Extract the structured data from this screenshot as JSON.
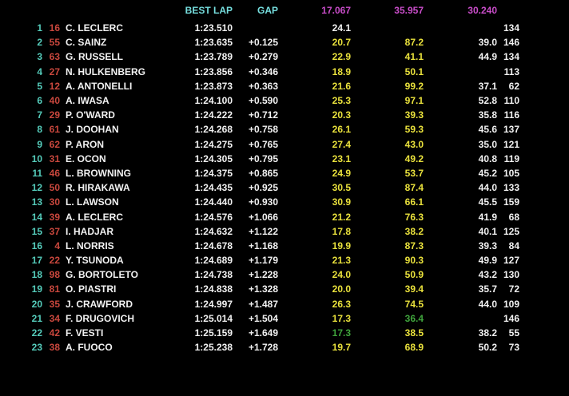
{
  "colors": {
    "background": "#000000",
    "position_teal": "#55ccbb",
    "car_number_red": "#c9473d",
    "text_white": "#f2f2f2",
    "header_cyan": "#76dede",
    "best_sector_magenta": "#c94dc9",
    "sector_yellow": "#e9e13c",
    "sector_green": "#3fa43c"
  },
  "header": {
    "best_lap_label": "BEST LAP",
    "gap_label": "GAP",
    "best_sectors": [
      "17.067",
      "35.957",
      "30.240"
    ]
  },
  "rows": [
    {
      "pos": "1",
      "num": "16",
      "driver": "C. LECLERC",
      "best_lap": "1:23.510",
      "gap": "",
      "s1": "24.1",
      "s1_color": "white",
      "s2": "",
      "s2_color": "yellow",
      "s3": "",
      "last": "134"
    },
    {
      "pos": "2",
      "num": "55",
      "driver": "C. SAINZ",
      "best_lap": "1:23.635",
      "gap": "+0.125",
      "s1": "20.7",
      "s1_color": "yellow",
      "s2": "87.2",
      "s2_color": "yellow",
      "s3": "39.0",
      "last": "146"
    },
    {
      "pos": "3",
      "num": "63",
      "driver": "G. RUSSELL",
      "best_lap": "1:23.789",
      "gap": "+0.279",
      "s1": "22.9",
      "s1_color": "yellow",
      "s2": "41.1",
      "s2_color": "yellow",
      "s3": "44.9",
      "last": "134"
    },
    {
      "pos": "4",
      "num": "27",
      "driver": "N. HULKENBERG",
      "best_lap": "1:23.856",
      "gap": "+0.346",
      "s1": "18.9",
      "s1_color": "yellow",
      "s2": "50.1",
      "s2_color": "yellow",
      "s3": "",
      "last": "113"
    },
    {
      "pos": "5",
      "num": "12",
      "driver": "A. ANTONELLI",
      "best_lap": "1:23.873",
      "gap": "+0.363",
      "s1": "21.6",
      "s1_color": "yellow",
      "s2": "99.2",
      "s2_color": "yellow",
      "s3": "37.1",
      "last": "62"
    },
    {
      "pos": "6",
      "num": "40",
      "driver": "A. IWASA",
      "best_lap": "1:24.100",
      "gap": "+0.590",
      "s1": "25.3",
      "s1_color": "yellow",
      "s2": "97.1",
      "s2_color": "yellow",
      "s3": "52.8",
      "last": "110"
    },
    {
      "pos": "7",
      "num": "29",
      "driver": "P. O'WARD",
      "best_lap": "1:24.222",
      "gap": "+0.712",
      "s1": "20.3",
      "s1_color": "yellow",
      "s2": "39.3",
      "s2_color": "yellow",
      "s3": "35.8",
      "last": "116"
    },
    {
      "pos": "8",
      "num": "61",
      "driver": "J. DOOHAN",
      "best_lap": "1:24.268",
      "gap": "+0.758",
      "s1": "26.1",
      "s1_color": "yellow",
      "s2": "59.3",
      "s2_color": "yellow",
      "s3": "45.6",
      "last": "137"
    },
    {
      "pos": "9",
      "num": "62",
      "driver": "P. ARON",
      "best_lap": "1:24.275",
      "gap": "+0.765",
      "s1": "27.4",
      "s1_color": "yellow",
      "s2": "43.0",
      "s2_color": "yellow",
      "s3": "35.0",
      "last": "121"
    },
    {
      "pos": "10",
      "num": "31",
      "driver": "E. OCON",
      "best_lap": "1:24.305",
      "gap": "+0.795",
      "s1": "23.1",
      "s1_color": "yellow",
      "s2": "49.2",
      "s2_color": "yellow",
      "s3": "40.8",
      "last": "119"
    },
    {
      "pos": "11",
      "num": "46",
      "driver": "L. BROWNING",
      "best_lap": "1:24.375",
      "gap": "+0.865",
      "s1": "24.9",
      "s1_color": "yellow",
      "s2": "53.7",
      "s2_color": "yellow",
      "s3": "45.2",
      "last": "105"
    },
    {
      "pos": "12",
      "num": "50",
      "driver": "R. HIRAKAWA",
      "best_lap": "1:24.435",
      "gap": "+0.925",
      "s1": "30.5",
      "s1_color": "yellow",
      "s2": "87.4",
      "s2_color": "yellow",
      "s3": "44.0",
      "last": "133"
    },
    {
      "pos": "13",
      "num": "30",
      "driver": "L. LAWSON",
      "best_lap": "1:24.440",
      "gap": "+0.930",
      "s1": "30.9",
      "s1_color": "yellow",
      "s2": "66.1",
      "s2_color": "yellow",
      "s3": "45.5",
      "last": "159"
    },
    {
      "pos": "14",
      "num": "39",
      "driver": "A. LECLERC",
      "best_lap": "1:24.576",
      "gap": "+1.066",
      "s1": "21.2",
      "s1_color": "yellow",
      "s2": "76.3",
      "s2_color": "yellow",
      "s3": "41.9",
      "last": "68"
    },
    {
      "pos": "15",
      "num": "37",
      "driver": "I. HADJAR",
      "best_lap": "1:24.632",
      "gap": "+1.122",
      "s1": "17.8",
      "s1_color": "yellow",
      "s2": "38.2",
      "s2_color": "yellow",
      "s3": "40.1",
      "last": "125"
    },
    {
      "pos": "16",
      "num": "4",
      "driver": "L. NORRIS",
      "best_lap": "1:24.678",
      "gap": "+1.168",
      "s1": "19.9",
      "s1_color": "yellow",
      "s2": "87.3",
      "s2_color": "yellow",
      "s3": "39.3",
      "last": "84"
    },
    {
      "pos": "17",
      "num": "22",
      "driver": "Y. TSUNODA",
      "best_lap": "1:24.689",
      "gap": "+1.179",
      "s1": "21.3",
      "s1_color": "yellow",
      "s2": "90.3",
      "s2_color": "yellow",
      "s3": "49.9",
      "last": "127"
    },
    {
      "pos": "18",
      "num": "98",
      "driver": "G. BORTOLETO",
      "best_lap": "1:24.738",
      "gap": "+1.228",
      "s1": "24.0",
      "s1_color": "yellow",
      "s2": "50.9",
      "s2_color": "yellow",
      "s3": "43.2",
      "last": "130"
    },
    {
      "pos": "19",
      "num": "81",
      "driver": "O. PIASTRI",
      "best_lap": "1:24.838",
      "gap": "+1.328",
      "s1": "20.0",
      "s1_color": "yellow",
      "s2": "39.4",
      "s2_color": "yellow",
      "s3": "35.7",
      "last": "72"
    },
    {
      "pos": "20",
      "num": "35",
      "driver": "J. CRAWFORD",
      "best_lap": "1:24.997",
      "gap": "+1.487",
      "s1": "26.3",
      "s1_color": "yellow",
      "s2": "74.5",
      "s2_color": "yellow",
      "s3": "44.0",
      "last": "109"
    },
    {
      "pos": "21",
      "num": "34",
      "driver": "F. DRUGOVICH",
      "best_lap": "1:25.014",
      "gap": "+1.504",
      "s1": "17.3",
      "s1_color": "yellow",
      "s2": "36.4",
      "s2_color": "green",
      "s3": "",
      "last": "146"
    },
    {
      "pos": "22",
      "num": "42",
      "driver": "F. VESTI",
      "best_lap": "1:25.159",
      "gap": "+1.649",
      "s1": "17.3",
      "s1_color": "green",
      "s2": "38.5",
      "s2_color": "yellow",
      "s3": "38.2",
      "last": "55"
    },
    {
      "pos": "23",
      "num": "38",
      "driver": "A. FUOCO",
      "best_lap": "1:25.238",
      "gap": "+1.728",
      "s1": "19.7",
      "s1_color": "yellow",
      "s2": "68.9",
      "s2_color": "yellow",
      "s3": "50.2",
      "last": "73"
    }
  ]
}
